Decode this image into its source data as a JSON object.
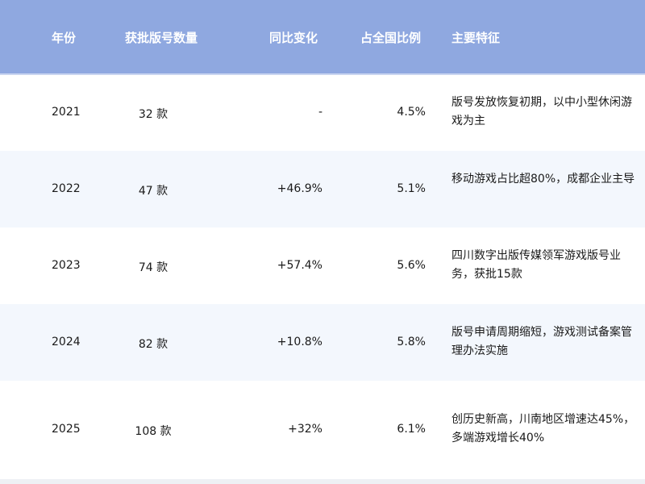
{
  "colors": {
    "header_bg": "#8FA8E0",
    "alt_row_bg": "#F3F7FD"
  },
  "headers": [
    "年份",
    "获批版号数量",
    "同比变化",
    "占全国比例",
    "主要特征"
  ],
  "rows": [
    {
      "year": "2021",
      "count": "32 款",
      "yoy": "-",
      "share": "4.5%",
      "feature": "版号发放恢复初期，以中小型休闲游戏为主"
    },
    {
      "year": "2022",
      "count": "47 款",
      "yoy": "+46.9%",
      "share": "5.1%",
      "feature": "移动游戏占比超80%，成都企业主导"
    },
    {
      "year": "2023",
      "count": "74 款",
      "yoy": "+57.4%",
      "share": "5.6%",
      "feature": "四川数字出版传媒领军游戏版号业务，获批15款"
    },
    {
      "year": "2024",
      "count": "82 款",
      "yoy": "+10.8%",
      "share": "5.8%",
      "feature": "版号申请周期缩短，游戏测试备案管理办法实施"
    },
    {
      "year": "2025",
      "count": "108 款",
      "yoy": "+32%",
      "share": "6.1%",
      "feature": "创历史新高，川南地区增速达45%，多端游戏增长40%"
    }
  ]
}
